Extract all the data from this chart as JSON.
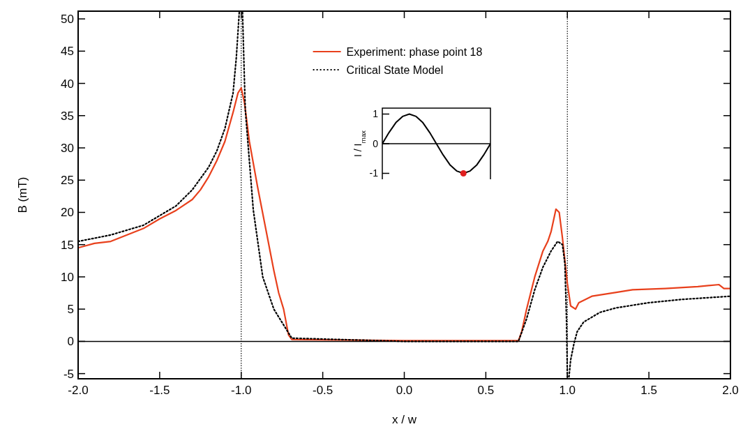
{
  "chart_data": [
    {
      "type": "line",
      "xlabel": "x / w",
      "ylabel": "B (mT)",
      "xlim": [
        -2,
        2
      ],
      "ylim": [
        -5.8,
        51.2
      ],
      "xticks": [
        {
          "value": -2,
          "label": "-2.0"
        },
        {
          "value": -1.5,
          "label": "-1.5"
        },
        {
          "value": -1,
          "label": "-1.0"
        },
        {
          "value": -0.5,
          "label": "-0.5"
        },
        {
          "value": 0,
          "label": "0.0"
        },
        {
          "value": 0.5,
          "label": "0.5"
        },
        {
          "value": 1,
          "label": "1.0"
        },
        {
          "value": 1.5,
          "label": "1.5"
        },
        {
          "value": 2,
          "label": "2.0"
        }
      ],
      "yticks": [
        -5,
        0,
        5,
        10,
        15,
        20,
        25,
        30,
        35,
        40,
        45,
        50
      ],
      "legend": "top",
      "ref_lines": [
        {
          "axis": "x",
          "value": -1,
          "color": "#000000",
          "line_style": "dotted"
        },
        {
          "axis": "x",
          "value": 1,
          "color": "#000000",
          "line_style": "dotted"
        },
        {
          "axis": "y",
          "value": 0,
          "color": "#000000",
          "line_style": "solid"
        }
      ],
      "series": [
        {
          "name": "Experiment: phase point 18",
          "color": "#e8401c",
          "line_style": "solid",
          "x": [
            -2,
            -1.9,
            -1.8,
            -1.7,
            -1.6,
            -1.5,
            -1.4,
            -1.3,
            -1.25,
            -1.2,
            -1.15,
            -1.1,
            -1.05,
            -1.02,
            -1,
            -0.98,
            -0.95,
            -0.9,
            -0.85,
            -0.8,
            -0.77,
            -0.74,
            -0.71,
            -0.69,
            0,
            0.7,
            0.72,
            0.75,
            0.8,
            0.85,
            0.88,
            0.9,
            0.93,
            0.95,
            0.97,
            1,
            1.02,
            1.05,
            1.07,
            1.15,
            1.3,
            1.4,
            1.6,
            1.8,
            1.93,
            1.96,
            2
          ],
          "values": [
            14.5,
            15.2,
            15.5,
            16.5,
            17.5,
            19,
            20.3,
            22,
            23.5,
            25.5,
            28,
            31,
            35.5,
            38.5,
            39.3,
            37,
            31,
            24,
            17.5,
            11,
            7.5,
            5,
            1,
            0.3,
            0.1,
            0.1,
            1.5,
            5,
            10,
            14,
            15.5,
            17,
            20.5,
            20,
            16,
            9,
            5.5,
            5,
            6,
            7,
            7.6,
            8,
            8.2,
            8.5,
            8.8,
            8.2,
            8.2
          ]
        },
        {
          "name": "Critical State Model",
          "color": "#000000",
          "line_style": "dotted",
          "x": [
            -2,
            -1.8,
            -1.6,
            -1.5,
            -1.4,
            -1.3,
            -1.2,
            -1.15,
            -1.1,
            -1.05,
            -1.03,
            -1.012,
            -1,
            -0.992,
            -0.975,
            -0.926,
            -0.868,
            -0.8,
            -0.69,
            0,
            0.7,
            0.75,
            0.8,
            0.85,
            0.9,
            0.94,
            0.97,
            0.985,
            0.995,
            1,
            1.005,
            1.01,
            1.02,
            1.04,
            1.06,
            1.1,
            1.2,
            1.3,
            1.5,
            1.7,
            2
          ],
          "values": [
            15.5,
            16.5,
            18,
            19.5,
            21,
            23.5,
            27,
            29.5,
            33,
            38.5,
            44,
            51,
            null,
            51,
            35.9,
            20.4,
            10,
            5,
            0.5,
            0,
            0,
            3.5,
            8,
            11.5,
            14,
            15.5,
            15,
            12,
            3,
            -5.5,
            null,
            -5.5,
            -2.9,
            -0.4,
            1.5,
            3,
            4.5,
            5.2,
            6,
            6.5,
            7
          ]
        }
      ]
    },
    {
      "type": "line",
      "ylabel": "I / I$_{max}$",
      "ylim": [
        -1.2,
        1.2
      ],
      "yticks": [
        -1,
        0,
        1
      ],
      "tick_labels": "y",
      "categories": [
        null,
        null,
        null,
        null,
        null,
        null,
        null,
        null,
        null,
        null,
        null,
        null,
        null,
        null,
        null,
        null,
        null
      ],
      "ref_lines": [
        {
          "axis": "y",
          "value": 0,
          "color": "#000000",
          "line_style": "solid"
        }
      ],
      "series": [
        {
          "color": "#000000",
          "line_style": "solid",
          "values": [
            0,
            0.38,
            0.71,
            0.92,
            1,
            0.92,
            0.71,
            0.38,
            0,
            -0.38,
            -0.71,
            -0.92,
            -1,
            -0.92,
            -0.71,
            -0.38,
            0
          ]
        },
        {
          "type": "scatter",
          "color": "#e02020",
          "marker": "circle",
          "values": [
            null,
            null,
            null,
            null,
            null,
            null,
            null,
            null,
            null,
            null,
            null,
            null,
            -1,
            null,
            null,
            null,
            null
          ]
        }
      ]
    }
  ]
}
